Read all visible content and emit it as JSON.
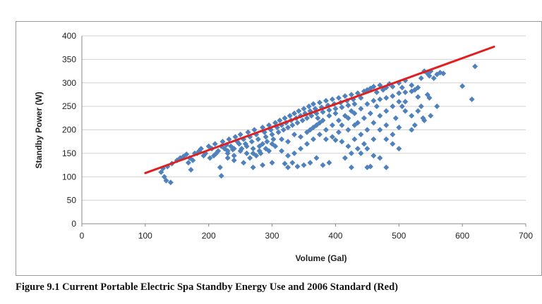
{
  "caption": "Figure 9.1 Current Portable Electric Spa Standby Energy Use and 2006 Standard (Red)",
  "chart_data": {
    "type": "scatter",
    "title": "",
    "xlabel": "Volume (Gal)",
    "ylabel": "Standby Power (W)",
    "xlim": [
      0,
      700
    ],
    "ylim": [
      0,
      400
    ],
    "x_ticks": [
      "0",
      "100",
      "200",
      "300",
      "400",
      "500",
      "600",
      "700"
    ],
    "y_ticks": [
      "0",
      "50",
      "100",
      "150",
      "200",
      "250",
      "300",
      "350",
      "400"
    ],
    "grid": "horizontal",
    "legend": "none",
    "colors": {
      "points": "#4f81bd",
      "standard_line": "#e02020"
    },
    "standard_line": {
      "x": [
        100,
        650
      ],
      "y": [
        108,
        377
      ]
    },
    "series": [
      {
        "points": [
          [
            125,
            110
          ],
          [
            130,
            100
          ],
          [
            133,
            92
          ],
          [
            140,
            88
          ],
          [
            128,
            118
          ],
          [
            135,
            122
          ],
          [
            142,
            128
          ],
          [
            150,
            135
          ],
          [
            155,
            140
          ],
          [
            160,
            143
          ],
          [
            165,
            148
          ],
          [
            170,
            140
          ],
          [
            172,
            115
          ],
          [
            178,
            150
          ],
          [
            185,
            155
          ],
          [
            188,
            160
          ],
          [
            195,
            150
          ],
          [
            200,
            165
          ],
          [
            205,
            160
          ],
          [
            208,
            145
          ],
          [
            210,
            170
          ],
          [
            215,
            155
          ],
          [
            218,
            120
          ],
          [
            220,
            102
          ],
          [
            222,
            175
          ],
          [
            225,
            160
          ],
          [
            228,
            168
          ],
          [
            230,
            150
          ],
          [
            232,
            180
          ],
          [
            235,
            165
          ],
          [
            238,
            158
          ],
          [
            240,
            145
          ],
          [
            242,
            185
          ],
          [
            245,
            175
          ],
          [
            248,
            170
          ],
          [
            250,
            190
          ],
          [
            252,
            160
          ],
          [
            255,
            180
          ],
          [
            258,
            170
          ],
          [
            260,
            150
          ],
          [
            262,
            195
          ],
          [
            265,
            185
          ],
          [
            268,
            175
          ],
          [
            270,
            160
          ],
          [
            272,
            200
          ],
          [
            275,
            190
          ],
          [
            278,
            180
          ],
          [
            280,
            165
          ],
          [
            282,
            150
          ],
          [
            285,
            205
          ],
          [
            288,
            195
          ],
          [
            290,
            185
          ],
          [
            292,
            175
          ],
          [
            295,
            210
          ],
          [
            298,
            200
          ],
          [
            300,
            190
          ],
          [
            302,
            180
          ],
          [
            305,
            215
          ],
          [
            308,
            205
          ],
          [
            310,
            195
          ],
          [
            312,
            220
          ],
          [
            315,
            210
          ],
          [
            318,
            200
          ],
          [
            320,
            225
          ],
          [
            322,
            215
          ],
          [
            325,
            205
          ],
          [
            328,
            230
          ],
          [
            330,
            220
          ],
          [
            332,
            210
          ],
          [
            335,
            235
          ],
          [
            338,
            225
          ],
          [
            340,
            215
          ],
          [
            342,
            240
          ],
          [
            345,
            230
          ],
          [
            348,
            220
          ],
          [
            350,
            245
          ],
          [
            352,
            235
          ],
          [
            355,
            225
          ],
          [
            358,
            250
          ],
          [
            360,
            240
          ],
          [
            362,
            230
          ],
          [
            365,
            255
          ],
          [
            368,
            245
          ],
          [
            370,
            235
          ],
          [
            372,
            225
          ],
          [
            375,
            258
          ],
          [
            378,
            248
          ],
          [
            380,
            238
          ],
          [
            385,
            262
          ],
          [
            388,
            252
          ],
          [
            390,
            242
          ],
          [
            395,
            265
          ],
          [
            398,
            255
          ],
          [
            400,
            245
          ],
          [
            405,
            268
          ],
          [
            408,
            258
          ],
          [
            410,
            248
          ],
          [
            415,
            272
          ],
          [
            418,
            262
          ],
          [
            420,
            252
          ],
          [
            425,
            275
          ],
          [
            428,
            265
          ],
          [
            430,
            255
          ],
          [
            435,
            278
          ],
          [
            440,
            268
          ],
          [
            445,
            282
          ],
          [
            450,
            285
          ],
          [
            455,
            288
          ],
          [
            460,
            292
          ],
          [
            465,
            280
          ],
          [
            470,
            295
          ],
          [
            475,
            285
          ],
          [
            480,
            290
          ],
          [
            485,
            298
          ],
          [
            490,
            292
          ],
          [
            500,
            300
          ],
          [
            505,
            290
          ],
          [
            510,
            305
          ],
          [
            520,
            295
          ],
          [
            525,
            285
          ],
          [
            535,
            310
          ],
          [
            540,
            325
          ],
          [
            545,
            320
          ],
          [
            548,
            315
          ],
          [
            550,
            325
          ],
          [
            555,
            310
          ],
          [
            560,
            318
          ],
          [
            565,
            322
          ],
          [
            570,
            320
          ],
          [
            600,
            293
          ],
          [
            615,
            265
          ],
          [
            620,
            335
          ],
          [
            545,
            275
          ],
          [
            548,
            268
          ],
          [
            538,
            225
          ],
          [
            530,
            270
          ],
          [
            500,
            260
          ],
          [
            505,
            250
          ],
          [
            495,
            225
          ],
          [
            500,
            205
          ],
          [
            480,
            120
          ],
          [
            455,
            122
          ],
          [
            450,
            120
          ],
          [
            425,
            120
          ],
          [
            415,
            140
          ],
          [
            400,
            178
          ],
          [
            390,
            130
          ],
          [
            380,
            125
          ],
          [
            370,
            140
          ],
          [
            360,
            130
          ],
          [
            350,
            125
          ],
          [
            340,
            122
          ],
          [
            332,
            130
          ],
          [
            325,
            120
          ],
          [
            320,
            128
          ],
          [
            300,
            130
          ],
          [
            285,
            125
          ],
          [
            270,
            120
          ],
          [
            255,
            130
          ],
          [
            240,
            135
          ],
          [
            230,
            140
          ],
          [
            420,
            200
          ],
          [
            430,
            210
          ],
          [
            440,
            190
          ],
          [
            450,
            200
          ],
          [
            460,
            215
          ],
          [
            470,
            230
          ],
          [
            480,
            240
          ],
          [
            490,
            250
          ],
          [
            455,
            235
          ],
          [
            465,
            250
          ],
          [
            445,
            225
          ],
          [
            435,
            215
          ],
          [
            425,
            240
          ],
          [
            415,
            230
          ],
          [
            405,
            220
          ],
          [
            395,
            210
          ],
          [
            385,
            200
          ],
          [
            375,
            190
          ],
          [
            365,
            180
          ],
          [
            355,
            170
          ],
          [
            345,
            160
          ],
          [
            335,
            150
          ],
          [
            325,
            145
          ],
          [
            315,
            155
          ],
          [
            305,
            165
          ],
          [
            295,
            155
          ],
          [
            285,
            170
          ],
          [
            275,
            145
          ],
          [
            265,
            140
          ],
          [
            360,
            200
          ],
          [
            370,
            210
          ],
          [
            380,
            220
          ],
          [
            390,
            230
          ],
          [
            400,
            235
          ],
          [
            410,
            210
          ],
          [
            420,
            225
          ],
          [
            430,
            235
          ],
          [
            440,
            245
          ],
          [
            450,
            255
          ],
          [
            460,
            262
          ],
          [
            470,
            265
          ],
          [
            480,
            268
          ],
          [
            490,
            272
          ],
          [
            500,
            278
          ],
          [
            510,
            280
          ],
          [
            520,
            282
          ],
          [
            530,
            290
          ],
          [
            470,
            200
          ],
          [
            480,
            210
          ],
          [
            490,
            190
          ],
          [
            460,
            180
          ],
          [
            445,
            170
          ],
          [
            435,
            160
          ],
          [
            425,
            150
          ],
          [
            440,
            150
          ],
          [
            450,
            160
          ],
          [
            460,
            145
          ],
          [
            470,
            140
          ],
          [
            510,
            240
          ],
          [
            520,
            230
          ],
          [
            530,
            240
          ],
          [
            540,
            220
          ],
          [
            550,
            230
          ],
          [
            560,
            250
          ],
          [
            480,
            180
          ],
          [
            490,
            170
          ],
          [
            500,
            160
          ],
          [
            520,
            200
          ],
          [
            525,
            210
          ],
          [
            535,
            250
          ],
          [
            510,
            260
          ],
          [
            315,
            180
          ],
          [
            325,
            175
          ],
          [
            335,
            190
          ],
          [
            345,
            185
          ],
          [
            355,
            195
          ],
          [
            365,
            205
          ],
          [
            375,
            215
          ],
          [
            385,
            180
          ],
          [
            395,
            185
          ],
          [
            405,
            195
          ],
          [
            410,
            175
          ],
          [
            420,
            165
          ],
          [
            430,
            180
          ],
          [
            300,
            170
          ],
          [
            290,
            160
          ],
          [
            280,
            155
          ],
          [
            270,
            150
          ],
          [
            260,
            165
          ],
          [
            250,
            155
          ],
          [
            240,
            160
          ],
          [
            230,
            155
          ],
          [
            220,
            165
          ],
          [
            212,
            150
          ],
          [
            202,
            140
          ],
          [
            192,
            145
          ],
          [
            182,
            150
          ],
          [
            175,
            135
          ],
          [
            168,
            130
          ]
        ]
      }
    ]
  }
}
